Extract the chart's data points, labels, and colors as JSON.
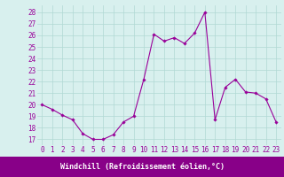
{
  "x": [
    0,
    1,
    2,
    3,
    4,
    5,
    6,
    7,
    8,
    9,
    10,
    11,
    12,
    13,
    14,
    15,
    16,
    17,
    18,
    19,
    20,
    21,
    22,
    23
  ],
  "y": [
    20.0,
    19.6,
    19.1,
    18.7,
    17.5,
    17.0,
    17.0,
    17.4,
    18.5,
    19.0,
    22.2,
    26.1,
    25.5,
    25.8,
    25.3,
    26.2,
    28.0,
    18.7,
    21.5,
    22.2,
    21.1,
    21.0,
    20.5,
    18.5
  ],
  "line_color": "#990099",
  "marker": "D",
  "markersize": 1.8,
  "linewidth": 0.8,
  "bg_color": "#d8f0ee",
  "grid_color": "#b0d8d4",
  "xlabel": "Windchill (Refroidissement éolien,°C)",
  "xlabel_bg": "#880088",
  "xlabel_fg": "#ffffff",
  "yticks": [
    17,
    18,
    19,
    20,
    21,
    22,
    23,
    24,
    25,
    26,
    27,
    28
  ],
  "xticks": [
    0,
    1,
    2,
    3,
    4,
    5,
    6,
    7,
    8,
    9,
    10,
    11,
    12,
    13,
    14,
    15,
    16,
    17,
    18,
    19,
    20,
    21,
    22,
    23
  ],
  "ylim": [
    16.5,
    28.6
  ],
  "xlim": [
    -0.5,
    23.5
  ],
  "tick_fontsize": 5.5,
  "label_fontsize": 6.0
}
